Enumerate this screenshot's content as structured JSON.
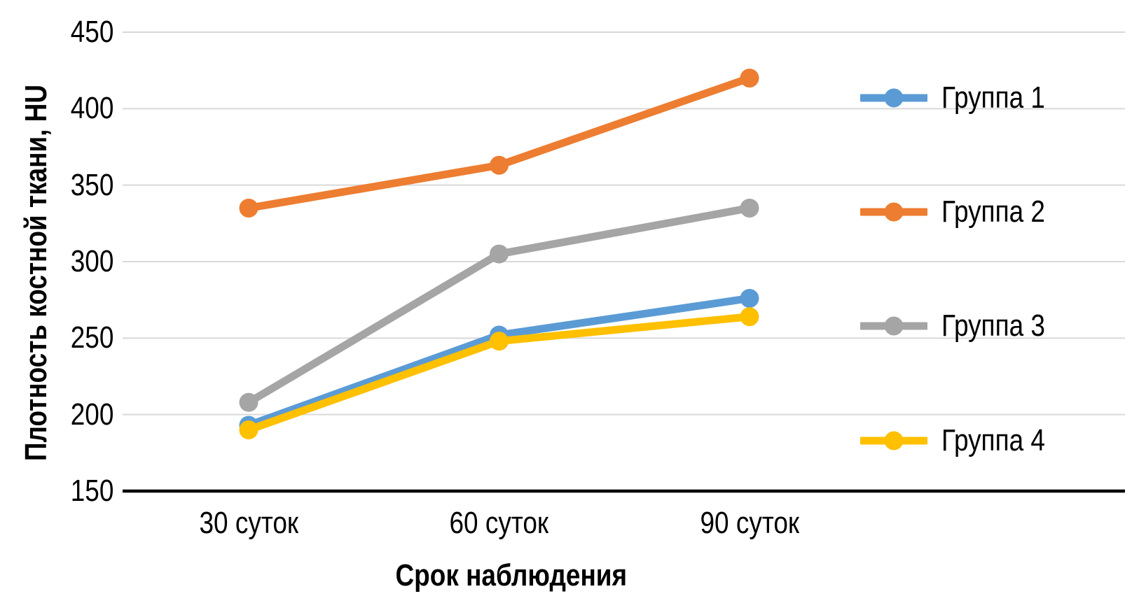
{
  "chart_data": {
    "type": "line",
    "title": "",
    "xlabel": "Срок наблюдения",
    "ylabel": "Плотность костной ткани, HU",
    "categories": [
      "30 суток",
      "60 суток",
      "90 суток"
    ],
    "series": [
      {
        "name": "Группа 1",
        "color": "#5B9BD5",
        "values": [
          193,
          252,
          276
        ]
      },
      {
        "name": "Группа 2",
        "color": "#ED7D31",
        "values": [
          335,
          363,
          420
        ]
      },
      {
        "name": "Группа 3",
        "color": "#A5A5A5",
        "values": [
          208,
          305,
          335
        ]
      },
      {
        "name": "Группа 4",
        "color": "#FFC000",
        "values": [
          190,
          248,
          264
        ]
      }
    ],
    "ylim": [
      150,
      450
    ],
    "yticks": [
      450,
      400,
      350,
      300,
      250,
      200,
      150
    ],
    "grid": true,
    "legend_position": "right-overlay",
    "gridline_color": "#D9D9D9",
    "axis_line_color": "#000000",
    "background": "#FFFFFF",
    "marker_style": "circle"
  }
}
